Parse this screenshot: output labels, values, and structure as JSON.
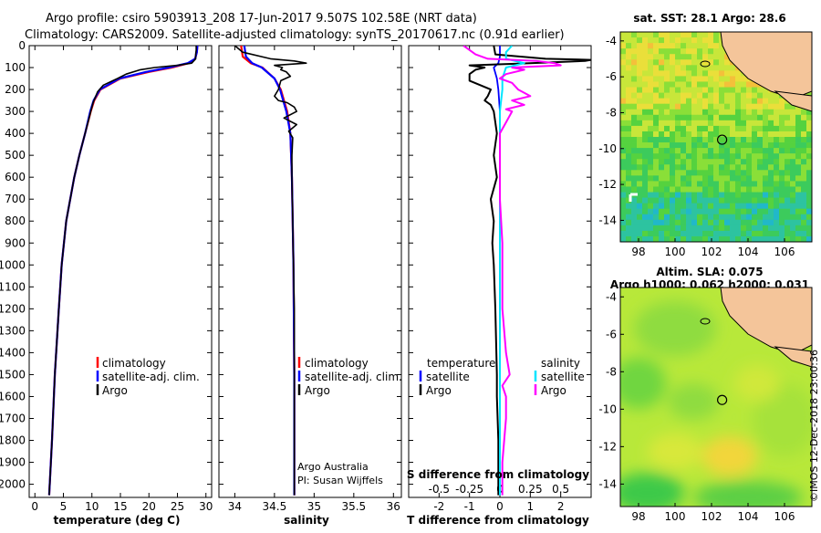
{
  "header": {
    "line1": "Argo profile: csiro 5903913_208 17-Jun-2017 9.507S 102.58E (NRT data)",
    "line2": "Climatology: CARS2009. Satellite-adjusted climatology: synTS_20170617.nc (0.91d earlier)"
  },
  "colors": {
    "climatology": "#ff0000",
    "satellite": "#0000ff",
    "argo": "#000000",
    "sat_salinity": "#00e5ff",
    "argo_salinity": "#ff00ff",
    "land": "#f4c59a"
  },
  "depth_ticks": [
    "0",
    "100",
    "200",
    "300",
    "400",
    "500",
    "600",
    "700",
    "800",
    "900",
    "1000",
    "1100",
    "1200",
    "1300",
    "1400",
    "1500",
    "1600",
    "1700",
    "1800",
    "1900",
    "2000"
  ],
  "chart_data": [
    {
      "type": "line",
      "name": "temperature-profile",
      "xlabel": "temperature (deg C)",
      "ylabel": "depth",
      "xlim": [
        -1,
        31
      ],
      "ylim": [
        2060,
        0
      ],
      "xticks": [
        "0",
        "5",
        "10",
        "15",
        "20",
        "25",
        "30"
      ],
      "legend": [
        "climatology",
        "satellite-adj. clim.",
        "Argo"
      ],
      "series": [
        {
          "name": "climatology",
          "depth": [
            0,
            30,
            60,
            80,
            100,
            120,
            150,
            200,
            250,
            300,
            400,
            500,
            600,
            800,
            1000,
            1200,
            1500,
            1800,
            2050
          ],
          "values": [
            28.5,
            28.4,
            28.1,
            27,
            24,
            20,
            15,
            11.5,
            10.4,
            9.8,
            8.8,
            7.8,
            6.9,
            5.5,
            4.7,
            4.2,
            3.5,
            3.0,
            2.5
          ]
        },
        {
          "name": "satellite-adj. clim.",
          "depth": [
            0,
            30,
            60,
            80,
            100,
            120,
            150,
            200,
            250,
            300,
            400,
            500,
            600,
            800,
            1000,
            1200,
            1500,
            1800,
            2050
          ],
          "values": [
            28.5,
            28.4,
            28.1,
            26.8,
            23.5,
            19.5,
            14.8,
            11.4,
            10.3,
            9.7,
            8.8,
            7.8,
            6.9,
            5.5,
            4.7,
            4.2,
            3.5,
            3.0,
            2.5
          ]
        },
        {
          "name": "Argo",
          "depth": [
            0,
            20,
            40,
            60,
            80,
            90,
            100,
            110,
            130,
            150,
            180,
            210,
            260,
            300,
            400,
            500,
            600,
            800,
            1000,
            1200,
            1500,
            1800,
            2050
          ],
          "values": [
            28.3,
            28.3,
            28.2,
            28.2,
            27.5,
            25,
            21,
            18.5,
            16,
            14.5,
            12,
            11,
            10.2,
            9.8,
            8.8,
            7.8,
            6.9,
            5.5,
            4.7,
            4.2,
            3.5,
            3.0,
            2.5
          ]
        }
      ]
    },
    {
      "type": "line",
      "name": "salinity-profile",
      "xlabel": "salinity",
      "xlim": [
        33.8,
        36.1
      ],
      "ylim": [
        2060,
        0
      ],
      "xticks": [
        "34",
        "34.5",
        "35",
        "35.5",
        "36"
      ],
      "legend": [
        "climatology",
        "satellite-adj. clim.",
        "Argo"
      ],
      "credits": [
        "Argo Australia",
        "PI: Susan Wijffels"
      ],
      "series": [
        {
          "name": "climatology",
          "depth": [
            0,
            50,
            80,
            100,
            150,
            200,
            250,
            300,
            400,
            600,
            1000,
            1500,
            2050
          ],
          "values": [
            34.08,
            34.1,
            34.2,
            34.35,
            34.5,
            34.58,
            34.62,
            34.66,
            34.7,
            34.72,
            34.74,
            34.75,
            34.75
          ]
        },
        {
          "name": "satellite-adj. clim.",
          "depth": [
            0,
            50,
            80,
            100,
            150,
            200,
            250,
            300,
            400,
            600,
            1000,
            1500,
            2050
          ],
          "values": [
            34.12,
            34.14,
            34.22,
            34.34,
            34.5,
            34.57,
            34.61,
            34.65,
            34.7,
            34.72,
            34.74,
            34.75,
            34.75
          ]
        },
        {
          "name": "Argo",
          "depth": [
            0,
            30,
            60,
            70,
            80,
            90,
            100,
            110,
            120,
            140,
            160,
            200,
            230,
            250,
            260,
            280,
            300,
            330,
            360,
            390,
            420,
            500,
            600,
            800,
            1000,
            1200,
            1500,
            1800,
            2050
          ],
          "values": [
            34.0,
            34.1,
            34.45,
            34.75,
            34.9,
            34.5,
            34.6,
            34.58,
            34.65,
            34.7,
            34.58,
            34.55,
            34.5,
            34.55,
            34.66,
            34.75,
            34.78,
            34.62,
            34.78,
            34.68,
            34.73,
            34.72,
            34.72,
            34.73,
            34.74,
            34.75,
            34.75,
            34.75,
            34.75
          ]
        }
      ]
    },
    {
      "type": "line",
      "name": "difference-profile",
      "xlabel": "T difference from climatology",
      "xlabel_top": "S difference from climatology",
      "xlim": [
        -3,
        3
      ],
      "ylim": [
        2060,
        0
      ],
      "xticks": [
        "-2",
        "-1",
        "0",
        "1",
        "2"
      ],
      "sticks": [
        "-0.5",
        "-0.25",
        "0",
        "0.25",
        "0.5"
      ],
      "legend_temperature": {
        "heading": "temperature",
        "items": [
          "satellite",
          "Argo"
        ]
      },
      "legend_salinity": {
        "heading": "salinity",
        "items": [
          "satellite",
          "Argo"
        ]
      },
      "series": [
        {
          "name": "T satellite",
          "depth": [
            0,
            50,
            80,
            100,
            150,
            200,
            300,
            500,
            800,
            1200,
            1600,
            2050
          ],
          "values": [
            0,
            0,
            -0.05,
            -0.2,
            -0.1,
            -0.05,
            0,
            0,
            0,
            0,
            0,
            0
          ]
        },
        {
          "name": "T Argo",
          "depth": [
            0,
            40,
            60,
            65,
            70,
            80,
            90,
            100,
            110,
            130,
            160,
            200,
            230,
            250,
            270,
            300,
            400,
            500,
            600,
            700,
            800,
            900,
            1000,
            1200,
            1500,
            1600,
            1800,
            2050
          ],
          "values": [
            -0.2,
            -0.15,
            1.5,
            3.0,
            2.8,
            1.0,
            -1.0,
            -0.5,
            -0.8,
            -1.0,
            -1.0,
            -0.3,
            -0.4,
            -0.5,
            -0.3,
            -0.2,
            -0.1,
            -0.2,
            -0.1,
            -0.3,
            -0.2,
            -0.25,
            -0.2,
            -0.15,
            -0.1,
            -0.1,
            -0.05,
            -0.05
          ]
        },
        {
          "name": "S satellite",
          "depth": [
            0,
            30,
            60,
            80,
            100,
            150,
            200,
            300,
            500,
            800,
            1200,
            1600,
            2050
          ],
          "values": [
            0.1,
            0.05,
            0.05,
            0.2,
            0.05,
            0.02,
            0.02,
            0.0,
            0.0,
            0.0,
            0.0,
            0.0,
            0.0
          ]
        },
        {
          "name": "S Argo",
          "depth": [
            0,
            20,
            40,
            60,
            70,
            80,
            90,
            100,
            110,
            130,
            150,
            170,
            200,
            230,
            250,
            270,
            290,
            300,
            350,
            400,
            500,
            700,
            900,
            1200,
            1400,
            1500,
            1550,
            1600,
            1700,
            1900,
            2050
          ],
          "values": [
            -0.3,
            -0.25,
            -0.2,
            -0.1,
            0.3,
            0.45,
            0.5,
            0.1,
            0.2,
            0.05,
            0.0,
            0.1,
            0.15,
            0.25,
            0.1,
            0.2,
            0.05,
            0.1,
            0.05,
            0.0,
            0.0,
            0.0,
            0.02,
            0.02,
            0.05,
            0.08,
            0.02,
            0.05,
            0.05,
            0.02,
            0.02
          ]
        }
      ]
    }
  ],
  "map_sst": {
    "title": "sat. SST: 28.1 Argo: 28.6",
    "xticks": [
      "98",
      "100",
      "102",
      "104",
      "106"
    ],
    "yticks": [
      "-4",
      "-6",
      "-8",
      "-10",
      "-12",
      "-14"
    ],
    "argo_position": {
      "lon": 102.58,
      "lat": -9.507
    }
  },
  "map_sla": {
    "title_line1": "Altim. SLA: 0.075",
    "title_line2": "Argo h1000: 0.062 h2000: 0.031",
    "xticks": [
      "98",
      "100",
      "102",
      "104",
      "106"
    ],
    "yticks": [
      "-4",
      "-6",
      "-8",
      "-10",
      "-12",
      "-14"
    ],
    "argo_position": {
      "lon": 102.58,
      "lat": -9.507
    }
  },
  "credit": "©IMOS 12-Dec-2018 23:00:36"
}
